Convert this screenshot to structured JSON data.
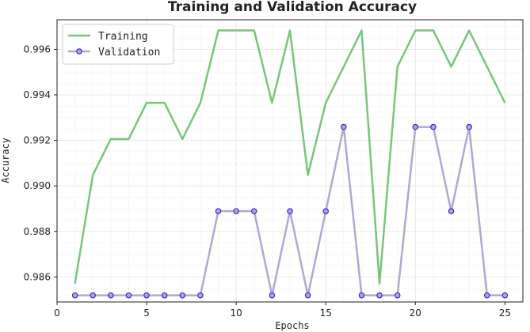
{
  "chart_data": {
    "type": "line",
    "title": "Training and Validation Accuracy",
    "xlabel": "Epochs",
    "ylabel": "Accuracy",
    "xlim": [
      0,
      26
    ],
    "ylim": [
      0.9849,
      0.9973
    ],
    "xticks": [
      0,
      5,
      10,
      15,
      20,
      25
    ],
    "yticks": [
      0.986,
      0.988,
      0.99,
      0.992,
      0.994,
      0.996
    ],
    "ytick_labels": [
      "0.986",
      "0.988",
      "0.990",
      "0.992",
      "0.994",
      "0.996"
    ],
    "grid": true,
    "legend_position": "top-left",
    "x": [
      1,
      2,
      3,
      4,
      5,
      6,
      7,
      8,
      9,
      10,
      11,
      12,
      13,
      14,
      15,
      16,
      17,
      18,
      19,
      20,
      21,
      22,
      23,
      24,
      25
    ],
    "series": [
      {
        "name": "Training",
        "color": "#77c67a",
        "marker": "none",
        "values": [
          0.98571,
          0.99048,
          0.99206,
          0.99206,
          0.99365,
          0.99365,
          0.99206,
          0.99365,
          0.99683,
          0.99683,
          0.99683,
          0.99365,
          0.99683,
          0.99048,
          0.99365,
          0.99524,
          0.99683,
          0.98571,
          0.99524,
          0.99683,
          0.99683,
          0.99524,
          0.99683,
          0.99524,
          0.99365
        ]
      },
      {
        "name": "Validation",
        "color": "#b3a6d4",
        "marker": "circle",
        "marker_edge": "#2b2bd6",
        "values": [
          0.98519,
          0.98519,
          0.98519,
          0.98519,
          0.98519,
          0.98519,
          0.98519,
          0.98519,
          0.98889,
          0.98889,
          0.98889,
          0.98519,
          0.98889,
          0.98519,
          0.98889,
          0.99259,
          0.98519,
          0.98519,
          0.98519,
          0.99259,
          0.99259,
          0.98889,
          0.99259,
          0.98519,
          0.98519
        ]
      }
    ]
  }
}
